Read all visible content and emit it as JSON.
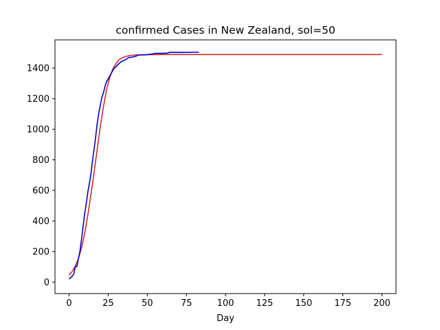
{
  "chart_data": {
    "type": "line",
    "title": "confirmed Cases in New Zealand, sol=50",
    "xlabel": "Day",
    "ylabel": "",
    "xlim": [
      -9,
      209
    ],
    "ylim": [
      -75,
      1585
    ],
    "xticks": [
      0,
      25,
      50,
      75,
      100,
      125,
      150,
      175,
      200
    ],
    "yticks": [
      0,
      200,
      400,
      600,
      800,
      1000,
      1200,
      1400
    ],
    "grid": false,
    "legend": "none",
    "series": [
      {
        "name": "",
        "color": "#d62728",
        "x": [
          0,
          2,
          4,
          6,
          8,
          10,
          12,
          14,
          16,
          18,
          20,
          22,
          24,
          26,
          28,
          30,
          32,
          34,
          36,
          38,
          40,
          45,
          50,
          60,
          80,
          100,
          125,
          150,
          175,
          200
        ],
        "y": [
          45,
          70,
          105,
          155,
          225,
          320,
          440,
          575,
          720,
          870,
          1020,
          1150,
          1260,
          1340,
          1395,
          1430,
          1455,
          1468,
          1476,
          1481,
          1484,
          1487,
          1488,
          1489,
          1489,
          1489,
          1489,
          1489,
          1489,
          1489
        ]
      },
      {
        "name": "",
        "color": "#0000cc",
        "x": [
          0,
          1,
          2,
          3,
          4,
          5,
          6,
          7,
          8,
          9,
          10,
          11,
          12,
          13,
          14,
          15,
          16,
          17,
          18,
          19,
          20,
          21,
          22,
          23,
          24,
          25,
          26,
          27,
          28,
          29,
          30,
          31,
          32,
          33,
          34,
          35,
          36,
          37,
          38,
          39,
          40,
          41,
          42,
          43,
          44,
          45,
          46,
          47,
          48,
          49,
          50,
          51,
          52,
          53,
          54,
          55,
          56,
          57,
          58,
          59,
          60,
          61,
          62,
          63,
          64,
          65,
          66,
          67,
          68,
          69,
          70,
          71,
          72,
          73,
          74,
          75,
          76,
          77,
          78,
          79,
          80,
          81,
          82,
          83
        ],
        "y": [
          20,
          28,
          39,
          52,
          102,
          102,
          155,
          205,
          283,
          368,
          451,
          514,
          589,
          647,
          708,
          797,
          868,
          950,
          1039,
          1106,
          1160,
          1210,
          1239,
          1283,
          1312,
          1330,
          1349,
          1366,
          1386,
          1401,
          1409,
          1422,
          1430,
          1440,
          1445,
          1451,
          1456,
          1461,
          1470,
          1470,
          1472,
          1474,
          1476,
          1479,
          1485,
          1486,
          1486,
          1487,
          1487,
          1487,
          1489,
          1489,
          1492,
          1492,
          1494,
          1497,
          1497,
          1497,
          1497,
          1497,
          1497,
          1498,
          1498,
          1498,
          1503,
          1503,
          1503,
          1503,
          1503,
          1503,
          1503,
          1503,
          1503,
          1503,
          1503,
          1503,
          1503,
          1503,
          1504,
          1504,
          1504,
          1504,
          1504,
          1504
        ]
      }
    ]
  }
}
